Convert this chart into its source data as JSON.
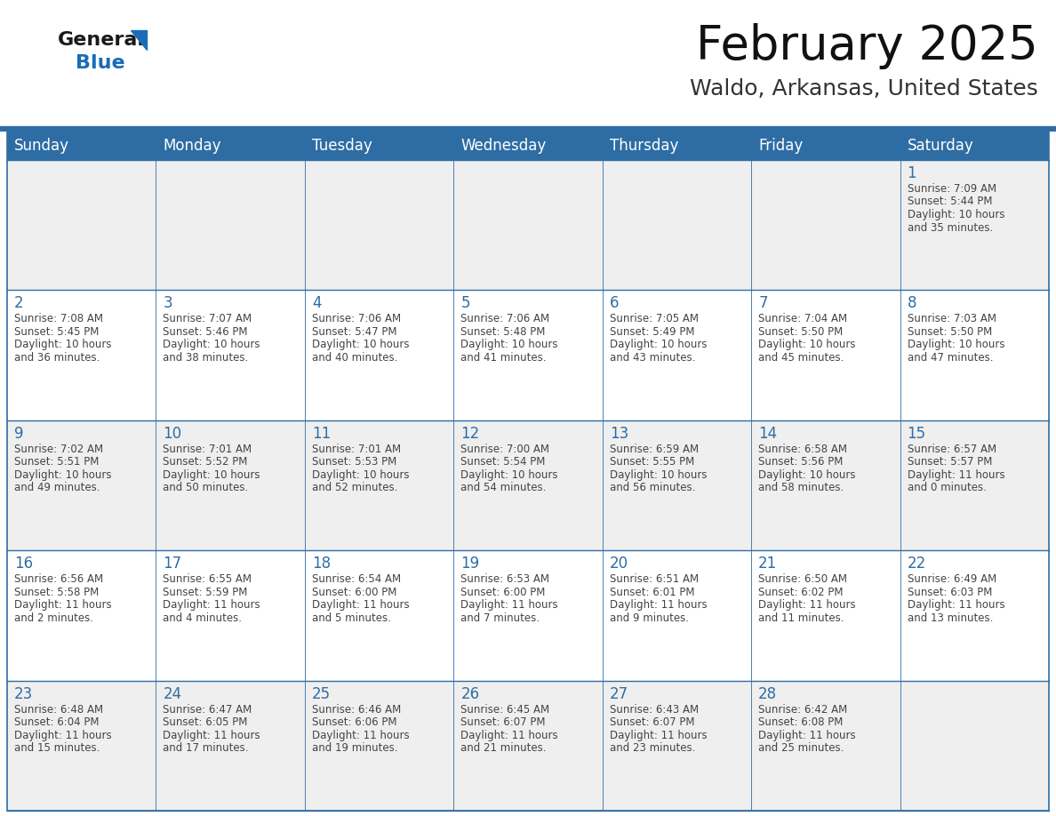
{
  "title": "February 2025",
  "subtitle": "Waldo, Arkansas, United States",
  "header_bg": "#2E6DA4",
  "header_text_color": "#FFFFFF",
  "cell_bg_odd": "#EFEFEF",
  "cell_bg_even": "#FFFFFF",
  "day_number_color": "#2E6DA4",
  "cell_text_color": "#444444",
  "border_color": "#2E6DA4",
  "grid_line_color": "#BBBBBB",
  "days_of_week": [
    "Sunday",
    "Monday",
    "Tuesday",
    "Wednesday",
    "Thursday",
    "Friday",
    "Saturday"
  ],
  "calendar_data": [
    [
      null,
      null,
      null,
      null,
      null,
      null,
      {
        "day": "1",
        "sunrise": "7:09 AM",
        "sunset": "5:44 PM",
        "daylight": "10 hours",
        "daylight2": "and 35 minutes."
      }
    ],
    [
      {
        "day": "2",
        "sunrise": "7:08 AM",
        "sunset": "5:45 PM",
        "daylight": "10 hours",
        "daylight2": "and 36 minutes."
      },
      {
        "day": "3",
        "sunrise": "7:07 AM",
        "sunset": "5:46 PM",
        "daylight": "10 hours",
        "daylight2": "and 38 minutes."
      },
      {
        "day": "4",
        "sunrise": "7:06 AM",
        "sunset": "5:47 PM",
        "daylight": "10 hours",
        "daylight2": "and 40 minutes."
      },
      {
        "day": "5",
        "sunrise": "7:06 AM",
        "sunset": "5:48 PM",
        "daylight": "10 hours",
        "daylight2": "and 41 minutes."
      },
      {
        "day": "6",
        "sunrise": "7:05 AM",
        "sunset": "5:49 PM",
        "daylight": "10 hours",
        "daylight2": "and 43 minutes."
      },
      {
        "day": "7",
        "sunrise": "7:04 AM",
        "sunset": "5:50 PM",
        "daylight": "10 hours",
        "daylight2": "and 45 minutes."
      },
      {
        "day": "8",
        "sunrise": "7:03 AM",
        "sunset": "5:50 PM",
        "daylight": "10 hours",
        "daylight2": "and 47 minutes."
      }
    ],
    [
      {
        "day": "9",
        "sunrise": "7:02 AM",
        "sunset": "5:51 PM",
        "daylight": "10 hours",
        "daylight2": "and 49 minutes."
      },
      {
        "day": "10",
        "sunrise": "7:01 AM",
        "sunset": "5:52 PM",
        "daylight": "10 hours",
        "daylight2": "and 50 minutes."
      },
      {
        "day": "11",
        "sunrise": "7:01 AM",
        "sunset": "5:53 PM",
        "daylight": "10 hours",
        "daylight2": "and 52 minutes."
      },
      {
        "day": "12",
        "sunrise": "7:00 AM",
        "sunset": "5:54 PM",
        "daylight": "10 hours",
        "daylight2": "and 54 minutes."
      },
      {
        "day": "13",
        "sunrise": "6:59 AM",
        "sunset": "5:55 PM",
        "daylight": "10 hours",
        "daylight2": "and 56 minutes."
      },
      {
        "day": "14",
        "sunrise": "6:58 AM",
        "sunset": "5:56 PM",
        "daylight": "10 hours",
        "daylight2": "and 58 minutes."
      },
      {
        "day": "15",
        "sunrise": "6:57 AM",
        "sunset": "5:57 PM",
        "daylight": "11 hours",
        "daylight2": "and 0 minutes."
      }
    ],
    [
      {
        "day": "16",
        "sunrise": "6:56 AM",
        "sunset": "5:58 PM",
        "daylight": "11 hours",
        "daylight2": "and 2 minutes."
      },
      {
        "day": "17",
        "sunrise": "6:55 AM",
        "sunset": "5:59 PM",
        "daylight": "11 hours",
        "daylight2": "and 4 minutes."
      },
      {
        "day": "18",
        "sunrise": "6:54 AM",
        "sunset": "6:00 PM",
        "daylight": "11 hours",
        "daylight2": "and 5 minutes."
      },
      {
        "day": "19",
        "sunrise": "6:53 AM",
        "sunset": "6:00 PM",
        "daylight": "11 hours",
        "daylight2": "and 7 minutes."
      },
      {
        "day": "20",
        "sunrise": "6:51 AM",
        "sunset": "6:01 PM",
        "daylight": "11 hours",
        "daylight2": "and 9 minutes."
      },
      {
        "day": "21",
        "sunrise": "6:50 AM",
        "sunset": "6:02 PM",
        "daylight": "11 hours",
        "daylight2": "and 11 minutes."
      },
      {
        "day": "22",
        "sunrise": "6:49 AM",
        "sunset": "6:03 PM",
        "daylight": "11 hours",
        "daylight2": "and 13 minutes."
      }
    ],
    [
      {
        "day": "23",
        "sunrise": "6:48 AM",
        "sunset": "6:04 PM",
        "daylight": "11 hours",
        "daylight2": "and 15 minutes."
      },
      {
        "day": "24",
        "sunrise": "6:47 AM",
        "sunset": "6:05 PM",
        "daylight": "11 hours",
        "daylight2": "and 17 minutes."
      },
      {
        "day": "25",
        "sunrise": "6:46 AM",
        "sunset": "6:06 PM",
        "daylight": "11 hours",
        "daylight2": "and 19 minutes."
      },
      {
        "day": "26",
        "sunrise": "6:45 AM",
        "sunset": "6:07 PM",
        "daylight": "11 hours",
        "daylight2": "and 21 minutes."
      },
      {
        "day": "27",
        "sunrise": "6:43 AM",
        "sunset": "6:07 PM",
        "daylight": "11 hours",
        "daylight2": "and 23 minutes."
      },
      {
        "day": "28",
        "sunrise": "6:42 AM",
        "sunset": "6:08 PM",
        "daylight": "11 hours",
        "daylight2": "and 25 minutes."
      },
      null
    ]
  ],
  "logo_color_general": "#1a1a1a",
  "logo_color_blue": "#1a6cb7",
  "logo_triangle_color": "#1a6cb7",
  "title_fontsize": 38,
  "subtitle_fontsize": 18,
  "header_fontsize": 12,
  "day_num_fontsize": 12,
  "cell_text_fontsize": 8.5
}
